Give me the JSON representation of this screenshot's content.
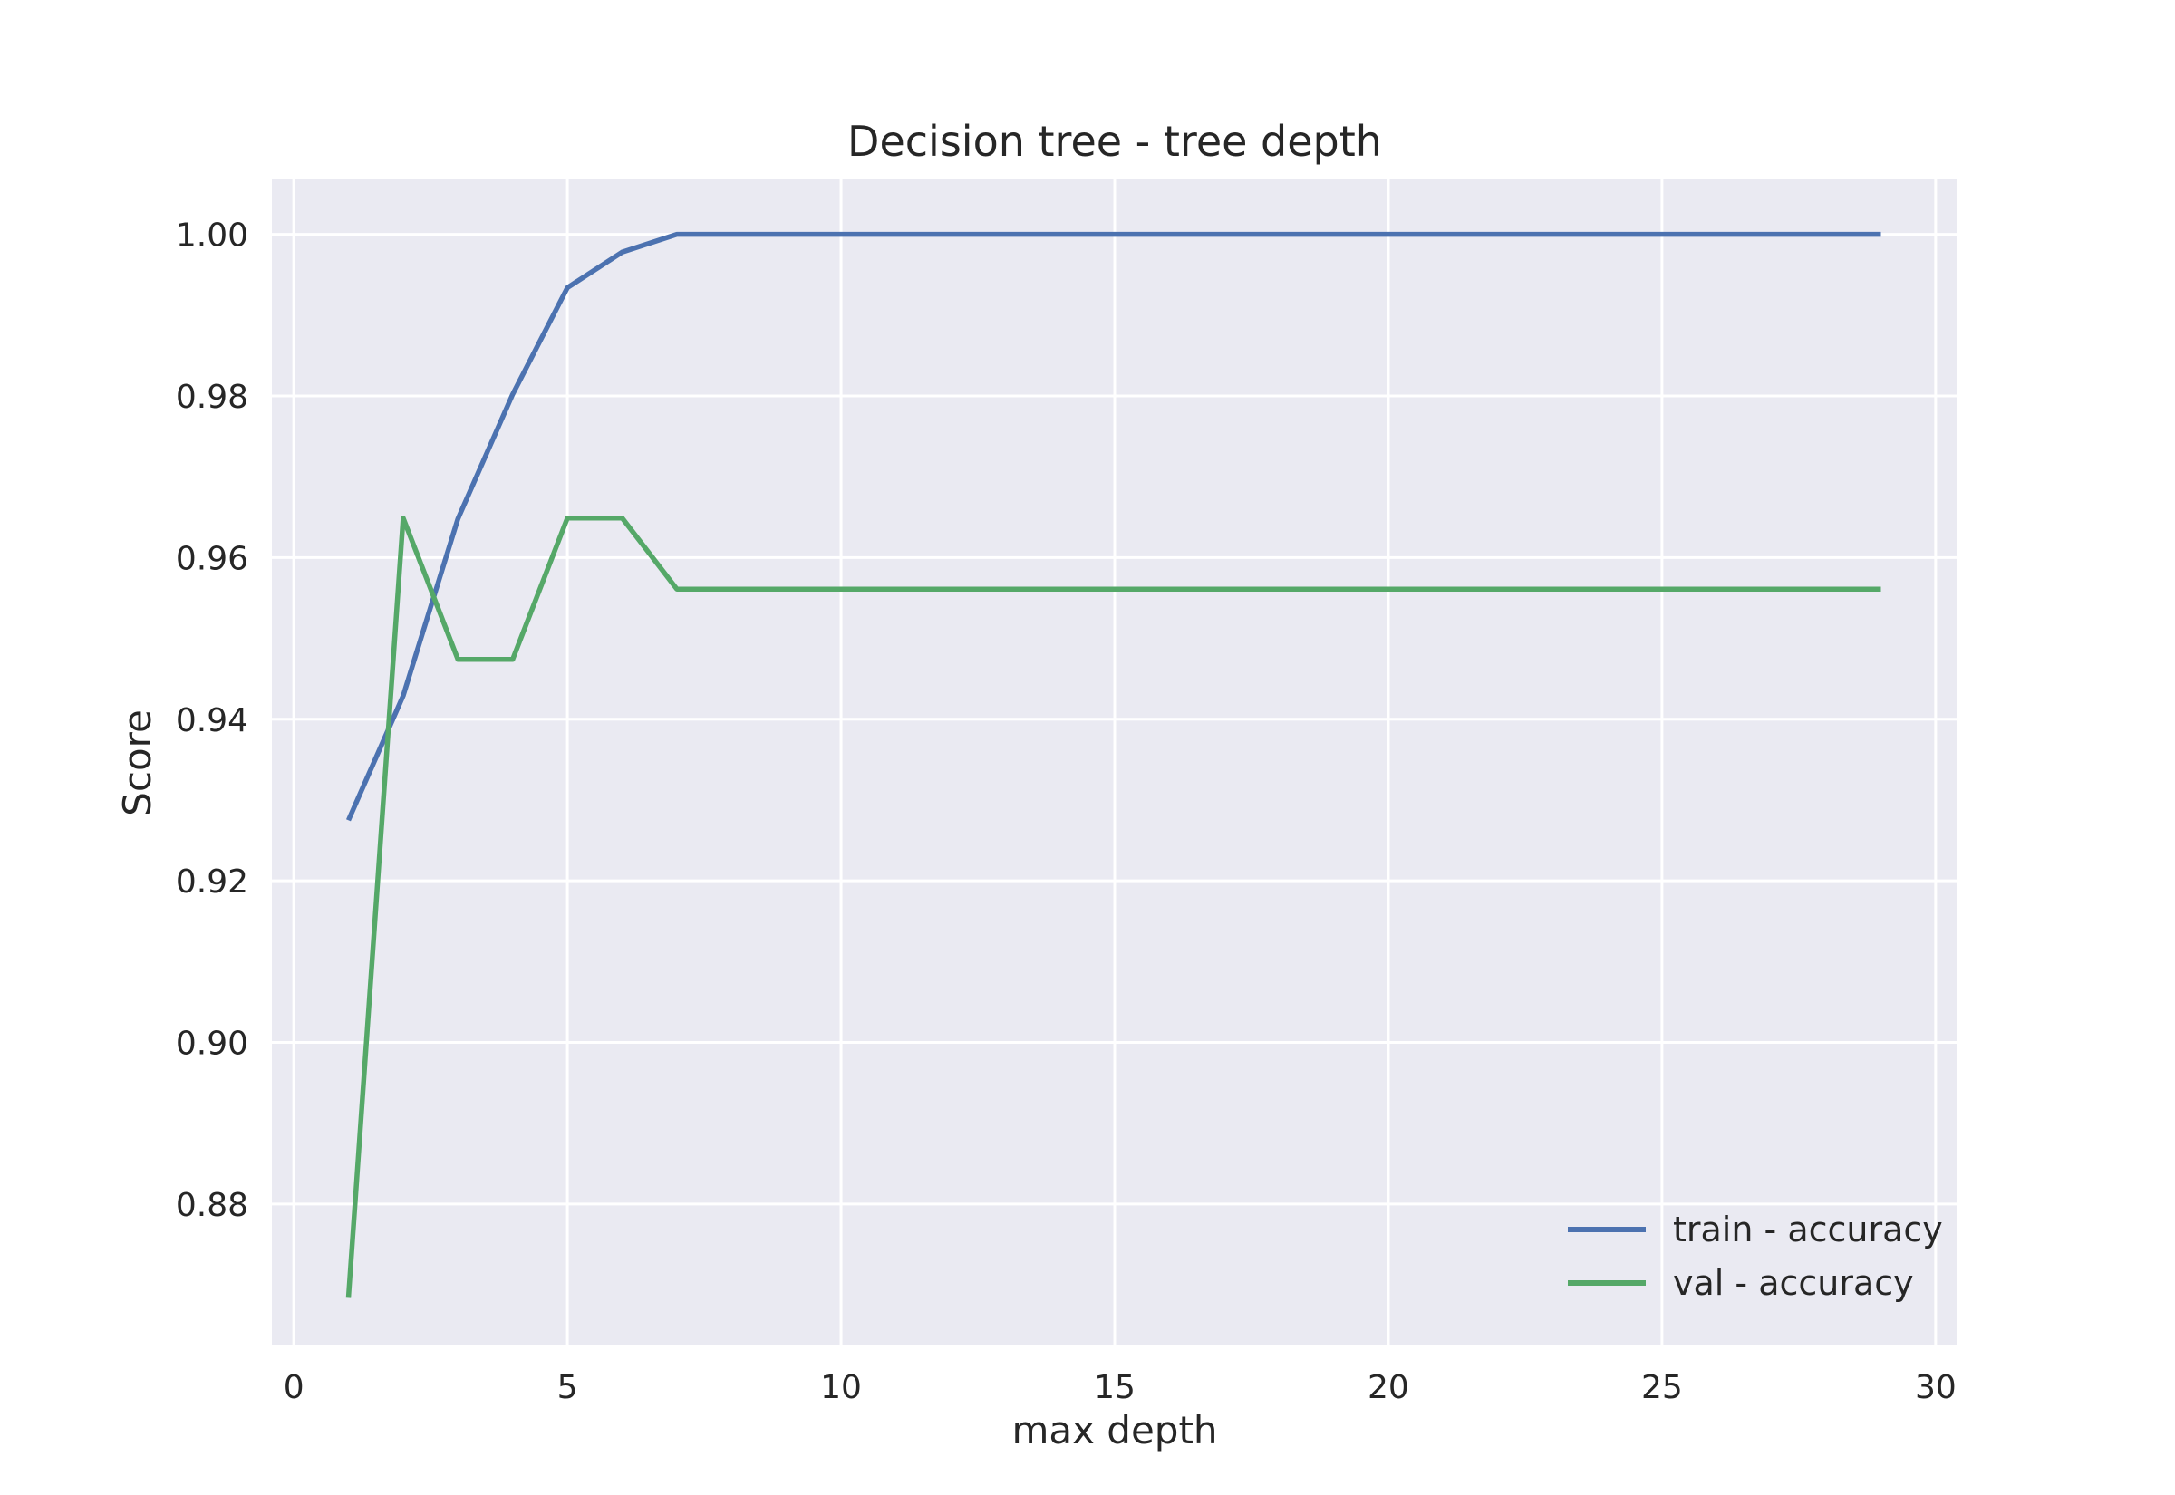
{
  "chart_data": {
    "type": "line",
    "title": "Decision tree - tree depth",
    "xlabel": "max depth",
    "ylabel": "Score",
    "xlim": [
      -0.4,
      30.4
    ],
    "ylim": [
      0.8625,
      1.0068
    ],
    "xticks": [
      0,
      5,
      10,
      15,
      20,
      25,
      30
    ],
    "yticks": [
      0.88,
      0.9,
      0.92,
      0.94,
      0.96,
      0.98,
      1.0
    ],
    "xtick_labels": [
      "0",
      "5",
      "10",
      "15",
      "20",
      "25",
      "30"
    ],
    "ytick_labels": [
      "0.88",
      "0.90",
      "0.92",
      "0.94",
      "0.96",
      "0.98",
      "1.00"
    ],
    "grid": true,
    "legend_position": "lower-right",
    "x": [
      1,
      2,
      3,
      4,
      5,
      6,
      7,
      8,
      9,
      10,
      11,
      12,
      13,
      14,
      15,
      16,
      17,
      18,
      19,
      20,
      21,
      22,
      23,
      24,
      25,
      26,
      27,
      28,
      29
    ],
    "series": [
      {
        "name": "train - accuracy",
        "color": "#4c72b0",
        "values": [
          0.9275,
          0.9429,
          0.9648,
          0.9802,
          0.9934,
          0.9978,
          1.0,
          1.0,
          1.0,
          1.0,
          1.0,
          1.0,
          1.0,
          1.0,
          1.0,
          1.0,
          1.0,
          1.0,
          1.0,
          1.0,
          1.0,
          1.0,
          1.0,
          1.0,
          1.0,
          1.0,
          1.0,
          1.0,
          1.0
        ]
      },
      {
        "name": "val - accuracy",
        "color": "#55a868",
        "values": [
          0.8684,
          0.9649,
          0.9474,
          0.9474,
          0.9649,
          0.9649,
          0.9561,
          0.9561,
          0.9561,
          0.9561,
          0.9561,
          0.9561,
          0.9561,
          0.9561,
          0.9561,
          0.9561,
          0.9561,
          0.9561,
          0.9561,
          0.9561,
          0.9561,
          0.9561,
          0.9561,
          0.9561,
          0.9561,
          0.9561,
          0.9561,
          0.9561,
          0.9561
        ]
      }
    ]
  }
}
